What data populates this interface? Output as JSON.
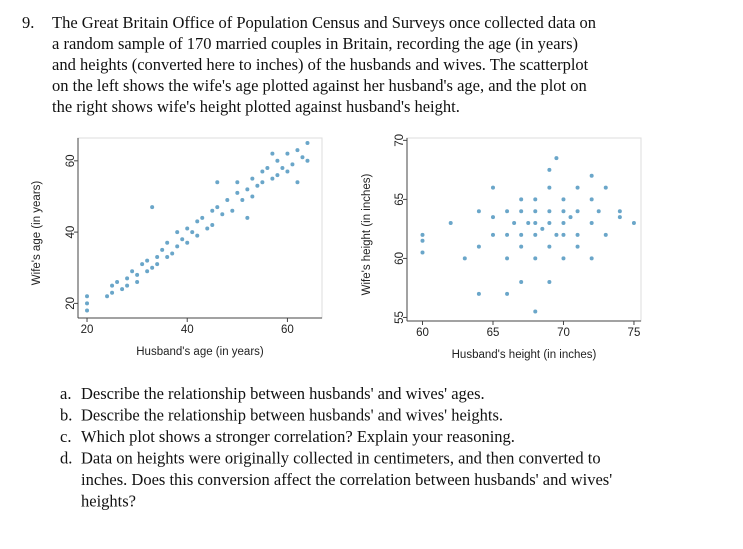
{
  "question": {
    "number": "9.",
    "lines": [
      "The Great Britain Office of Population Census and Surveys once collected data on",
      "a random sample of 170 married couples in Britain, recording the age (in years)",
      "and heights (converted here to inches) of the husbands and wives. The scatterplot",
      "on the left shows the wife's age plotted against her husband's age, and the plot on",
      "the right shows wife's height plotted against husband's height."
    ]
  },
  "chart_data": [
    {
      "type": "scatter",
      "xlabel": "Husband's age (in years)",
      "ylabel": "Wife's age (in years)",
      "color": "#6aa6c9",
      "xlim": [
        18.2,
        66.9
      ],
      "ylim": [
        15.9,
        66.4
      ],
      "xticks": [
        20,
        40,
        60
      ],
      "yticks": [
        20,
        40,
        60
      ],
      "x": [
        20,
        20,
        20,
        24,
        25,
        25,
        26,
        27,
        28,
        28,
        29,
        30,
        30,
        31,
        32,
        32,
        33,
        34,
        34,
        35,
        36,
        36,
        37,
        38,
        38,
        39,
        40,
        40,
        41,
        42,
        42,
        43,
        44,
        45,
        45,
        46,
        47,
        48,
        49,
        50,
        50,
        51,
        52,
        53,
        53,
        54,
        55,
        55,
        56,
        57,
        58,
        58,
        59,
        60,
        60,
        61,
        62,
        63,
        64,
        64,
        33,
        46,
        52,
        57,
        62
      ],
      "y": [
        20,
        22,
        18,
        22,
        25,
        23,
        26,
        24,
        27,
        25,
        29,
        26,
        28,
        31,
        29,
        32,
        30,
        33,
        31,
        35,
        33,
        37,
        34,
        36,
        40,
        38,
        41,
        37,
        40,
        43,
        39,
        44,
        41,
        46,
        42,
        47,
        45,
        49,
        46,
        51,
        54,
        49,
        52,
        55,
        50,
        53,
        57,
        54,
        58,
        55,
        60,
        56,
        58,
        62,
        57,
        59,
        63,
        61,
        65,
        60,
        47,
        54,
        44,
        62,
        54
      ]
    },
    {
      "type": "scatter",
      "xlabel": "Husband's height (in inches)",
      "ylabel": "Wife's height (in inches)",
      "color": "#6aa6c9",
      "xlim": [
        58.9,
        75.5
      ],
      "ylim": [
        54.7,
        70.2
      ],
      "xticks": [
        60,
        65,
        70,
        75
      ],
      "yticks": [
        55,
        60,
        65,
        70
      ],
      "x": [
        60,
        60,
        60,
        62,
        63,
        64,
        64,
        65,
        65,
        65,
        66,
        66,
        66,
        66.5,
        67,
        67,
        67,
        67,
        67.5,
        68,
        68,
        68,
        68,
        68,
        68.5,
        69,
        69,
        69,
        69,
        69,
        69,
        69.5,
        70,
        70,
        70,
        70,
        70,
        70.5,
        71,
        71,
        71,
        71,
        72,
        72,
        72,
        72.5,
        73,
        73,
        74,
        74,
        75,
        66,
        68,
        67,
        69.5,
        72,
        64
      ],
      "y": [
        62,
        61.5,
        60.5,
        63,
        60,
        64,
        61,
        62,
        63.5,
        66,
        62,
        64,
        60,
        63,
        62,
        64,
        65,
        61,
        63,
        62,
        63,
        64,
        65,
        60,
        62.5,
        61,
        63,
        64,
        66,
        67.5,
        58,
        62,
        63,
        65,
        62,
        60,
        64,
        63.5,
        61,
        64,
        66,
        62,
        63,
        65,
        60,
        64,
        62,
        66,
        64,
        63.5,
        63,
        57,
        55.5,
        58,
        68.5,
        67,
        57
      ]
    }
  ],
  "parts": [
    {
      "label": "a.",
      "lines": [
        "Describe the relationship between husbands' and wives' ages."
      ]
    },
    {
      "label": "b.",
      "lines": [
        "Describe the relationship between husbands' and wives' heights."
      ]
    },
    {
      "label": "c.",
      "lines": [
        "Which plot shows a stronger correlation? Explain your reasoning."
      ]
    },
    {
      "label": "d.",
      "lines": [
        "Data on heights were originally collected in centimeters, and then converted to",
        "inches. Does this conversion affect the correlation between husbands' and wives'",
        "heights?"
      ]
    }
  ]
}
